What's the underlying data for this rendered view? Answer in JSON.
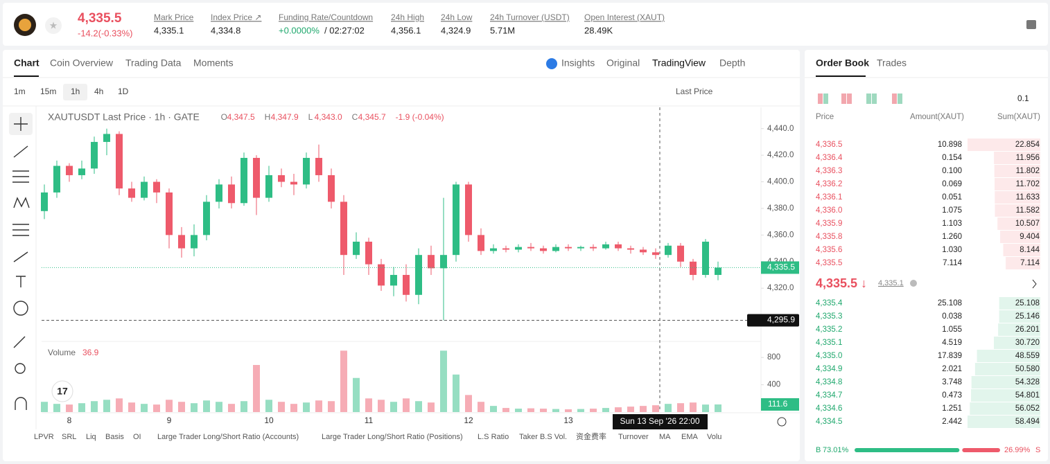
{
  "header": {
    "price": "4,335.5",
    "change": "-14.2(-0.33%)",
    "stats": [
      {
        "label": "Mark Price",
        "value": "4,335.1"
      },
      {
        "label": "Index Price ↗",
        "value": "4,334.8"
      },
      {
        "label": "Funding Rate/Countdown",
        "value": "+0.0000%",
        "extra": "/ 02:27:02"
      },
      {
        "label": "24h High",
        "value": "4,356.1"
      },
      {
        "label": "24h Low",
        "value": "4,324.9"
      },
      {
        "label": "24h Turnover (USDT)",
        "value": "5.71M"
      },
      {
        "label": "Open Interest (XAUT)",
        "value": "28.49K"
      }
    ]
  },
  "tabs": [
    "Chart",
    "Coin Overview",
    "Trading Data",
    "Moments"
  ],
  "view_tabs": [
    "Insights",
    "Original",
    "TradingView",
    "Depth"
  ],
  "intervals": [
    "1m",
    "15m",
    "1h",
    "4h",
    "1D"
  ],
  "price_type": "Last Price",
  "chart_data": {
    "type": "candlestick",
    "title": "XAUTUSDT Last Price · 1h · GATE",
    "legend": [
      {
        "key": "O",
        "value": "4,347.5"
      },
      {
        "key": "H",
        "value": "4,347.9"
      },
      {
        "key": "L",
        "value": "4,343.0"
      },
      {
        "key": "C",
        "value": "4,345.7"
      }
    ],
    "legend_change": "-1.9 (-0.04%)",
    "up_color": "#2ebd85",
    "down_color": "#ee5a6b",
    "categories": [
      null,
      null,
      "8",
      null,
      null,
      null,
      null,
      null,
      null,
      null,
      "9",
      null,
      null,
      null,
      null,
      null,
      null,
      null,
      "10",
      null,
      null,
      null,
      null,
      null,
      null,
      null,
      "11",
      null,
      null,
      null,
      null,
      null,
      null,
      null,
      "12",
      null,
      null,
      null,
      null,
      null,
      null,
      null,
      "13",
      null,
      null,
      null,
      null,
      null,
      null,
      null,
      null,
      null,
      null,
      null,
      null
    ],
    "open": [
      4378,
      4392,
      4412,
      4405,
      4410,
      4430,
      4436,
      4395,
      4388,
      4400,
      4392,
      4360,
      4350,
      4360,
      4385,
      4398,
      4384,
      4418,
      4388,
      4405,
      4400,
      4398,
      4418,
      4405,
      4385,
      4345,
      4355,
      4338,
      4322,
      4330,
      4315,
      4345,
      4335,
      4345,
      4398,
      4360,
      4348,
      4350,
      4349,
      4351,
      4350,
      4348,
      4351,
      4350,
      4351,
      4350,
      4353,
      4350,
      4349,
      4347,
      4345,
      4352,
      4340,
      4330,
      4330
    ],
    "high": [
      4398,
      4416,
      4414,
      4416,
      4434,
      4440,
      4438,
      4400,
      4404,
      4402,
      4395,
      4366,
      4368,
      4390,
      4402,
      4404,
      4422,
      4420,
      4412,
      4410,
      4406,
      4422,
      4428,
      4410,
      4390,
      4362,
      4358,
      4342,
      4336,
      4338,
      4350,
      4352,
      4388,
      4400,
      4400,
      4365,
      4353,
      4352,
      4353,
      4354,
      4352,
      4353,
      4353,
      4352,
      4353,
      4355,
      4355,
      4352,
      4351,
      4350,
      4354,
      4354,
      4342,
      4357,
      4340
    ],
    "low": [
      4372,
      4388,
      4400,
      4402,
      4406,
      4420,
      4390,
      4385,
      4386,
      4384,
      4350,
      4343,
      4344,
      4356,
      4380,
      4380,
      4382,
      4375,
      4385,
      4396,
      4390,
      4395,
      4400,
      4380,
      4330,
      4342,
      4330,
      4318,
      4314,
      4310,
      4308,
      4330,
      4295.9,
      4340,
      4355,
      4345,
      4346,
      4347,
      4347,
      4348,
      4346,
      4347,
      4348,
      4348,
      4348,
      4349,
      4348,
      4346,
      4345,
      4342,
      4343,
      4336,
      4326,
      4328,
      4326
    ],
    "close": [
      4392,
      4412,
      4405,
      4410,
      4430,
      4436,
      4395,
      4388,
      4400,
      4392,
      4360,
      4350,
      4360,
      4385,
      4398,
      4384,
      4418,
      4388,
      4405,
      4400,
      4398,
      4418,
      4405,
      4385,
      4345,
      4355,
      4338,
      4322,
      4330,
      4315,
      4345,
      4335,
      4345,
      4398,
      4360,
      4348,
      4350,
      4349,
      4351,
      4350,
      4348,
      4351,
      4350,
      4351,
      4350,
      4353,
      4350,
      4349,
      4347,
      4345,
      4352,
      4340,
      4330,
      4355,
      4335.5
    ],
    "ylim": [
      4280,
      4456
    ],
    "yticks": [
      {
        "value": 4440,
        "label": "4,440.0"
      },
      {
        "value": 4420,
        "label": "4,420.0"
      },
      {
        "value": 4400,
        "label": "4,400.0"
      },
      {
        "value": 4380,
        "label": "4,380.0"
      },
      {
        "value": 4360,
        "label": "4,360.0"
      },
      {
        "value": 4340,
        "label": "4,340.0"
      },
      {
        "value": 4320,
        "label": "4,320.0"
      }
    ],
    "last_price": {
      "value": 4335.5,
      "label": "4,335.5"
    },
    "low_line": {
      "value": 4295.9,
      "label": "4,295.9"
    },
    "volume_title": "Volume",
    "volume_last": "36.9",
    "volume": [
      150,
      120,
      110,
      130,
      160,
      180,
      200,
      140,
      120,
      110,
      180,
      150,
      130,
      170,
      150,
      120,
      160,
      690,
      180,
      150,
      120,
      140,
      170,
      160,
      900,
      500,
      200,
      180,
      150,
      200,
      160,
      140,
      900,
      550,
      250,
      150,
      90,
      60,
      50,
      55,
      50,
      45,
      40,
      45,
      50,
      60,
      70,
      80,
      90,
      100,
      120,
      130,
      140,
      110,
      111.6
    ],
    "vlim": [
      0,
      1015
    ],
    "vticks": [
      800,
      400
    ],
    "volume_marker": "111.6",
    "crosshair_label": "Sun 13 Sep '26   22:00"
  },
  "indicators": [
    "LPVR",
    "SRL",
    "Liq",
    "Basis",
    "OI",
    "Large Trader Long/Short Ratio (Accounts)",
    "Large Trader Long/Short Ratio (Positions)",
    "L.S Ratio",
    "Taker B.S Vol.",
    "资金费率",
    "Turnover",
    "MA",
    "EMA",
    "Volu"
  ],
  "order_book": {
    "tabs": [
      "Order Book",
      "Trades"
    ],
    "step": "0.1",
    "columns": [
      "Price",
      "Amount(XAUT)",
      "Sum(XAUT)"
    ],
    "asks": [
      [
        "4,336.5",
        "10.898",
        "22.854"
      ],
      [
        "4,336.4",
        "0.154",
        "11.956"
      ],
      [
        "4,336.3",
        "0.100",
        "11.802"
      ],
      [
        "4,336.2",
        "0.069",
        "11.702"
      ],
      [
        "4,336.1",
        "0.051",
        "11.633"
      ],
      [
        "4,336.0",
        "1.075",
        "11.582"
      ],
      [
        "4,335.9",
        "1.103",
        "10.507"
      ],
      [
        "4,335.8",
        "1.260",
        "9.404"
      ],
      [
        "4,335.6",
        "1.030",
        "8.144"
      ],
      [
        "4,335.5",
        "7.114",
        "7.114"
      ]
    ],
    "mid_price": "4,335.5 ↓",
    "mark_price": "4,335.1",
    "bids": [
      [
        "4,335.4",
        "25.108",
        "25.108"
      ],
      [
        "4,335.3",
        "0.038",
        "25.146"
      ],
      [
        "4,335.2",
        "1.055",
        "26.201"
      ],
      [
        "4,335.1",
        "4.519",
        "30.720"
      ],
      [
        "4,335.0",
        "17.839",
        "48.559"
      ],
      [
        "4,334.9",
        "2.021",
        "50.580"
      ],
      [
        "4,334.8",
        "3.748",
        "54.328"
      ],
      [
        "4,334.7",
        "0.473",
        "54.801"
      ],
      [
        "4,334.6",
        "1.251",
        "56.052"
      ],
      [
        "4,334.5",
        "2.442",
        "58.494"
      ]
    ],
    "buy_label": "B",
    "buy_ratio": {
      "value": 73.01,
      "label": "73.01%"
    },
    "sell_ratio": {
      "value": 26.99,
      "label": "26.99%"
    },
    "sell_label": "S"
  }
}
